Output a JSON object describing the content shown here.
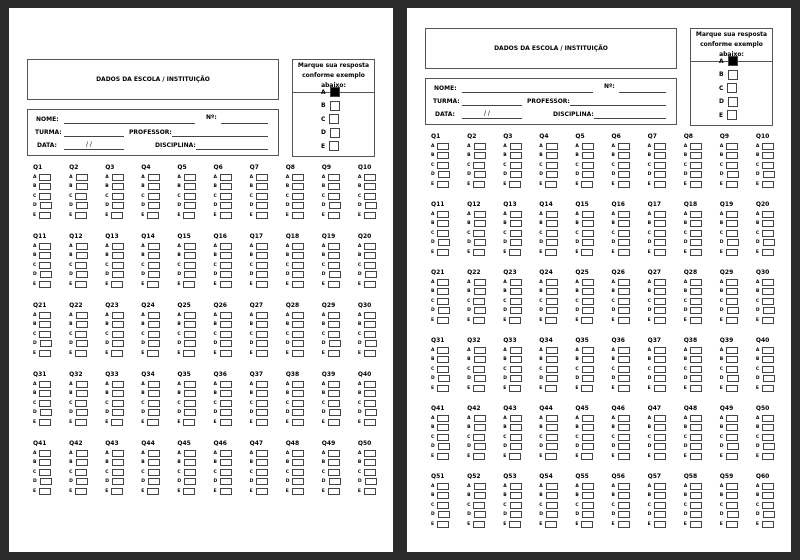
{
  "sheet": {
    "school_title": "DADOS DA ESCOLA / INSTITUIÇÃO",
    "fields": {
      "nome": "NOME:",
      "numero": "Nº:",
      "turma": "TURMA:",
      "professor": "PROFESSOR:",
      "data": "DATA:",
      "data_slashes": "/      /",
      "disciplina": "DISCIPLINA:"
    },
    "instructions": "Marque sua resposta conforme exemplo abaixo:",
    "example_options": [
      "A",
      "B",
      "C",
      "D",
      "E"
    ],
    "example_filled": "A",
    "options": [
      "A",
      "B",
      "C",
      "D",
      "E"
    ]
  },
  "pages": [
    {
      "questions": [
        "Q1",
        "Q2",
        "Q3",
        "Q4",
        "Q5",
        "Q6",
        "Q7",
        "Q8",
        "Q9",
        "Q10",
        "Q11",
        "Q12",
        "Q13",
        "Q14",
        "Q15",
        "Q16",
        "Q17",
        "Q18",
        "Q19",
        "Q20",
        "Q21",
        "Q22",
        "Q23",
        "Q24",
        "Q25",
        "Q26",
        "Q27",
        "Q28",
        "Q29",
        "Q30",
        "Q31",
        "Q32",
        "Q33",
        "Q34",
        "Q35",
        "Q36",
        "Q37",
        "Q38",
        "Q39",
        "Q40",
        "Q41",
        "Q42",
        "Q43",
        "Q44",
        "Q45",
        "Q46",
        "Q47",
        "Q48",
        "Q49",
        "Q50"
      ]
    },
    {
      "questions": [
        "Q1",
        "Q2",
        "Q3",
        "Q4",
        "Q5",
        "Q6",
        "Q7",
        "Q8",
        "Q9",
        "Q10",
        "Q11",
        "Q12",
        "Q13",
        "Q14",
        "Q15",
        "Q16",
        "Q17",
        "Q18",
        "Q19",
        "Q20",
        "Q21",
        "Q22",
        "Q23",
        "Q24",
        "Q25",
        "Q26",
        "Q27",
        "Q28",
        "Q29",
        "Q30",
        "Q31",
        "Q32",
        "Q33",
        "Q34",
        "Q35",
        "Q36",
        "Q37",
        "Q38",
        "Q39",
        "Q40",
        "Q41",
        "Q42",
        "Q43",
        "Q44",
        "Q45",
        "Q46",
        "Q47",
        "Q48",
        "Q49",
        "Q50",
        "Q51",
        "Q52",
        "Q53",
        "Q54",
        "Q55",
        "Q56",
        "Q57",
        "Q58",
        "Q59",
        "Q60"
      ]
    }
  ]
}
